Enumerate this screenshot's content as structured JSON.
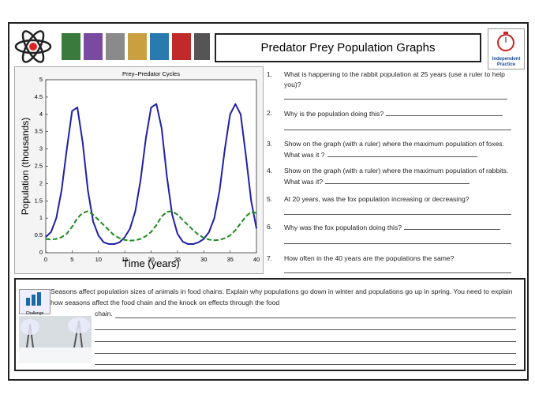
{
  "header": {
    "title": "Predator Prey Population Graphs",
    "badge": "Independent Practice"
  },
  "chart_data": {
    "type": "line",
    "title": "Prey–Predator Cycles",
    "x_label": "Time (years)",
    "y_label": "Population (thousands)",
    "x": [
      0,
      1,
      2,
      3,
      4,
      5,
      6,
      7,
      8,
      9,
      10,
      11,
      12,
      13,
      14,
      15,
      16,
      17,
      18,
      19,
      20,
      21,
      22,
      23,
      24,
      25,
      26,
      27,
      28,
      29,
      30,
      31,
      32,
      33,
      34,
      35,
      36,
      37,
      38,
      39,
      40
    ],
    "series": [
      {
        "color": "#1f1fa8",
        "style": "solid",
        "values": [
          0.45,
          0.6,
          1.0,
          1.8,
          3.0,
          4.1,
          4.2,
          3.2,
          1.8,
          0.9,
          0.5,
          0.3,
          0.25,
          0.25,
          0.3,
          0.45,
          0.7,
          1.2,
          2.1,
          3.3,
          4.2,
          4.3,
          3.6,
          2.2,
          1.1,
          0.55,
          0.32,
          0.25,
          0.25,
          0.3,
          0.4,
          0.6,
          1.0,
          1.8,
          3.0,
          4.0,
          4.3,
          4.0,
          2.8,
          1.5,
          0.7
        ]
      },
      {
        "color": "#1e8a1e",
        "style": "dashed",
        "values": [
          0.4,
          0.38,
          0.4,
          0.45,
          0.55,
          0.75,
          1.0,
          1.15,
          1.2,
          1.1,
          0.95,
          0.8,
          0.65,
          0.5,
          0.42,
          0.37,
          0.35,
          0.36,
          0.4,
          0.48,
          0.6,
          0.8,
          1.05,
          1.18,
          1.2,
          1.1,
          0.95,
          0.8,
          0.65,
          0.52,
          0.43,
          0.38,
          0.36,
          0.37,
          0.42,
          0.5,
          0.65,
          0.85,
          1.05,
          1.18,
          1.15
        ]
      }
    ],
    "xlim": [
      0,
      40
    ],
    "xticks": [
      0,
      5,
      10,
      15,
      20,
      25,
      30,
      35,
      40
    ],
    "ylim": [
      0,
      5
    ],
    "yticks": [
      0,
      0.5,
      1,
      1.5,
      2,
      2.5,
      3,
      3.5,
      4,
      4.5,
      5
    ]
  },
  "questions": [
    {
      "number": "1.",
      "text": "What is happening to the rabbit population at 25 years (use a ruler to help you)?"
    },
    {
      "number": "2.",
      "text": "Why is the population doing this?"
    },
    {
      "number": "3.",
      "text": "Show on the graph (with a ruler) where the maximum population of foxes. What was it ?"
    },
    {
      "number": "4.",
      "text": "Show on the graph (with a ruler) where the maximum population of rabbits. What was it?"
    },
    {
      "number": "5.",
      "text": "At 20 years, was the fox population increasing or decreasing?"
    },
    {
      "number": "6.",
      "text": "Why was the fox population doing this?"
    },
    {
      "number": "7.",
      "text": "How often in the 40 years are the populations the same?"
    }
  ],
  "challenge": {
    "badge": "Challenge",
    "text": "Seasons affect population sizes of animals in food chains. Explain why populations go down in winter and populations go up in spring. You need to explain how seasons affect the food chain and the knock on effects through the food",
    "continuation": "chain."
  }
}
